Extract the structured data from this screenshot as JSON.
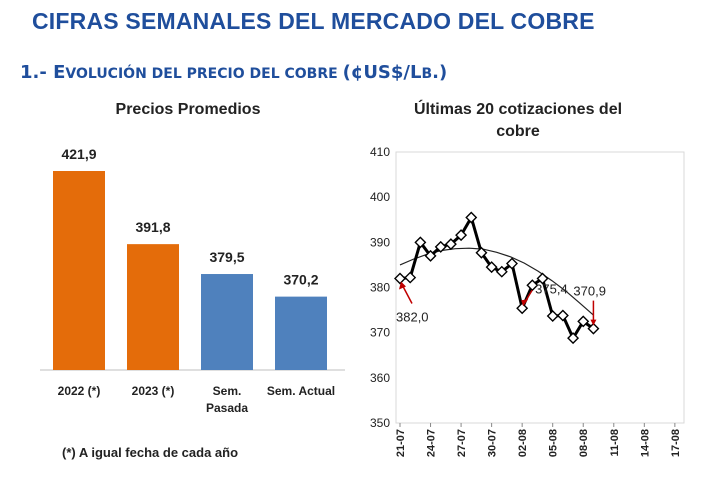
{
  "header": {
    "title": "CIFRAS SEMANALES DEL MERCADO DEL COBRE",
    "section_num": "1.- E",
    "section_sc1": "VOLUCIÓN DEL PRECIO DEL COBRE ",
    "section_paren": "(¢US$/L",
    "section_sc2": "B",
    "section_end": ".)"
  },
  "footnote": "(*) A igual fecha de cada año",
  "chart_data": [
    {
      "type": "bar",
      "title": "Precios Promedios",
      "categories": [
        "2022 (*)",
        "2023 (*)",
        "Sem.",
        "Sem. Actual"
      ],
      "category_line2": [
        "",
        "",
        "Pasada",
        ""
      ],
      "values": [
        421.9,
        391.8,
        379.5,
        370.2
      ],
      "value_labels": [
        "421,9",
        "391,8",
        "379,5",
        "370,2"
      ],
      "colors": [
        "#e46c0a",
        "#e46c0a",
        "#4f81bd",
        "#4f81bd"
      ],
      "ylim": [
        340,
        430
      ]
    },
    {
      "type": "line",
      "title_line1": "Últimas 20 cotizaciones del",
      "title_line2": "cobre",
      "x_ticks": [
        "21-07",
        "24-07",
        "27-07",
        "30-07",
        "02-08",
        "05-08",
        "08-08",
        "11-08",
        "14-08",
        "17-08"
      ],
      "y_ticks": [
        "410",
        "400",
        "390",
        "380",
        "370",
        "360",
        "350"
      ],
      "ylim": [
        350,
        410
      ],
      "series": [
        {
          "values": [
            382.0,
            382.2,
            390.0,
            387.0,
            389.0,
            389.6,
            391.6,
            395.5,
            387.7,
            384.5,
            383.5,
            385.3,
            375.4,
            380.5,
            382.0,
            373.7,
            373.8,
            368.8,
            372.5,
            370.9
          ],
          "color": "#000000"
        },
        {
          "trendline": true,
          "values": [
            385.0,
            386.3,
            387.4,
            388.2,
            388.6,
            388.7,
            388.5,
            387.8,
            386.8,
            385.4,
            383.6,
            381.5,
            379.2,
            376.6,
            373.9
          ]
        }
      ],
      "annotations": [
        "382,0",
        "375,4",
        "370,9"
      ],
      "annotation_color": "#c00000"
    }
  ]
}
